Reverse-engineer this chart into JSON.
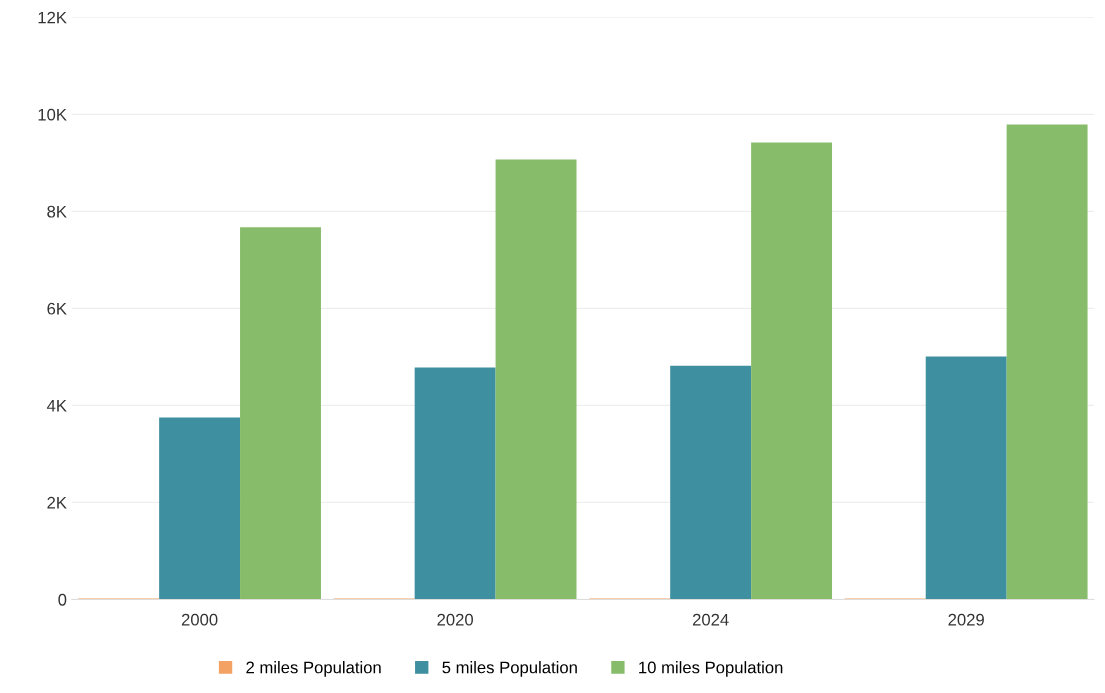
{
  "chart_data": {
    "type": "bar",
    "categories": [
      "2000",
      "2020",
      "2024",
      "2029"
    ],
    "series": [
      {
        "name": "2 miles Population",
        "color": "#f4a263",
        "values": [
          20,
          20,
          20,
          20
        ]
      },
      {
        "name": "5 miles Population",
        "color": "#3e8fa0",
        "values": [
          3750,
          4780,
          4820,
          5010
        ]
      },
      {
        "name": "10 miles Population",
        "color": "#87bd6a",
        "values": [
          7670,
          9070,
          9420,
          9790
        ]
      }
    ],
    "ylim": [
      0,
      12000
    ],
    "yticks": [
      0,
      {
        "value": 2000,
        "label": "2K"
      },
      {
        "value": 4000,
        "label": "4K"
      },
      {
        "value": 6000,
        "label": "6K"
      },
      {
        "value": 8000,
        "label": "8K"
      },
      {
        "value": 10000,
        "label": "10K"
      },
      {
        "value": 12000,
        "label": "12K"
      }
    ],
    "grid": "y",
    "legend": "bottom"
  }
}
